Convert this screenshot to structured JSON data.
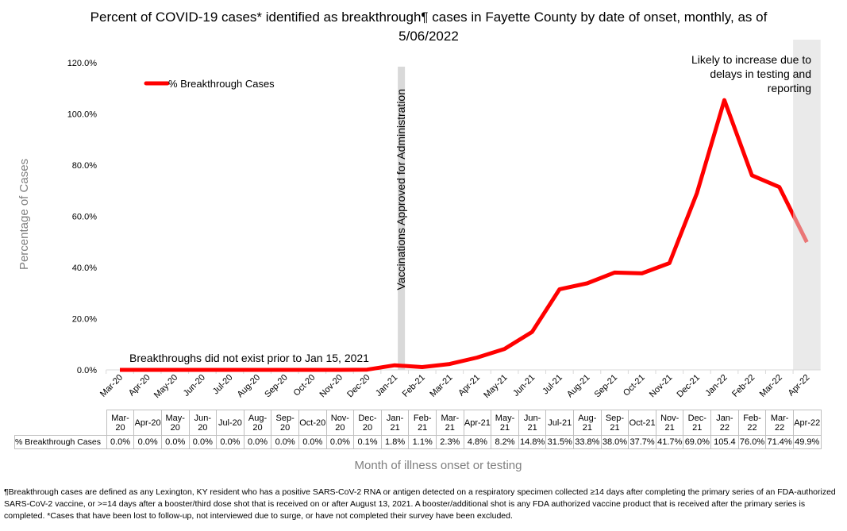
{
  "chart_data": {
    "type": "line",
    "title": "Percent of COVID-19 cases* identified as breakthrough¶ cases in Fayette County by date of onset, monthly, as of 5/06/2022",
    "y_label": "Percentage of Cases",
    "x_label": "Month of illness onset or testing",
    "categories": [
      "Mar-20",
      "Apr-20",
      "May-20",
      "Jun-20",
      "Jul-20",
      "Aug-20",
      "Sep-20",
      "Oct-20",
      "Nov-20",
      "Dec-20",
      "Jan-21",
      "Feb-21",
      "Mar-21",
      "Apr-21",
      "May-21",
      "Jun-21",
      "Jul-21",
      "Aug-21",
      "Sep-21",
      "Oct-21",
      "Nov-21",
      "Dec-21",
      "Jan-22",
      "Feb-22",
      "Mar-22",
      "Apr-22"
    ],
    "series": [
      {
        "name": "% Breakthrough Cases",
        "color": "#ff0000",
        "values": [
          0.0,
          0.0,
          0.0,
          0.0,
          0.0,
          0.0,
          0.0,
          0.0,
          0.0,
          0.1,
          1.8,
          1.1,
          2.3,
          4.8,
          8.2,
          14.8,
          31.5,
          33.8,
          38.0,
          37.7,
          41.7,
          69.0,
          105.4,
          76.0,
          71.4,
          49.9
        ],
        "value_labels": [
          "0.0%",
          "0.0%",
          "0.0%",
          "0.0%",
          "0.0%",
          "0.0%",
          "0.0%",
          "0.0%",
          "0.0%",
          "0.1%",
          "1.8%",
          "1.1%",
          "2.3%",
          "4.8%",
          "8.2%",
          "14.8%",
          "31.5%",
          "33.8%",
          "38.0%",
          "37.7%",
          "41.7%",
          "69.0%",
          "105.4",
          "76.0%",
          "71.4%",
          "49.9%"
        ]
      }
    ],
    "ylim": [
      0,
      120
    ],
    "yticks": [
      {
        "value": 0,
        "label": "0.0%"
      },
      {
        "value": 20,
        "label": "20.0%"
      },
      {
        "value": 40,
        "label": "40.0%"
      },
      {
        "value": 60,
        "label": "60.0%"
      },
      {
        "value": 80,
        "label": "80.0%"
      },
      {
        "value": 100,
        "label": "100.0%"
      },
      {
        "value": 120,
        "label": "120.0%"
      }
    ],
    "grid": false,
    "legend": "upper left",
    "annotations": [
      "Vaccinations Approved for Administration",
      "Breakthroughs did not exist prior to Jan 15, 2021",
      "Likely to increase due to delays in testing and reporting"
    ],
    "footnote": "¶Breakthrough cases are defined as any Lexington, KY resident who has a positive SARS-CoV-2 RNA or antigen detected on a respiratory specimen collected ≥14 days after completing the primary series of an FDA-authorized SARS-CoV-2 vaccine, or >=14 days after a booster/third dose shot that is received on or after August 13, 2021.  A booster/additional shot is any FDA authorized vaccine product that is received after the primary series is completed. *Cases that have been lost to follow-up, not interviewed due to surge, or have not completed their survey have been excluded."
  }
}
